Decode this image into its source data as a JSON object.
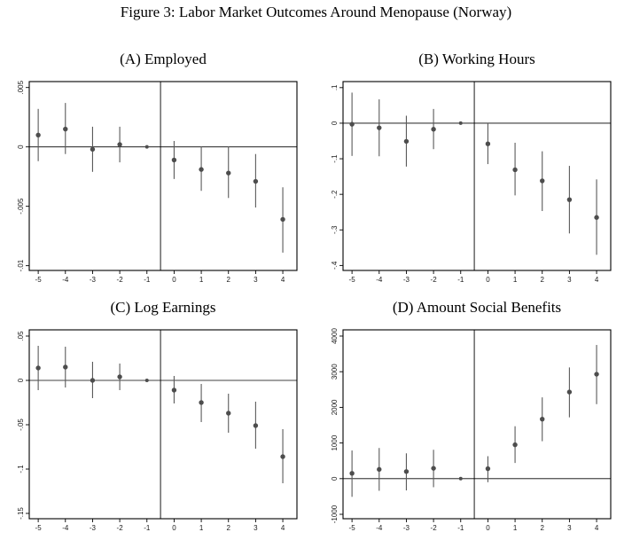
{
  "figure": {
    "title": "Figure 3: Labor Market Outcomes Around Menopause (Norway)"
  },
  "chart_data": [
    {
      "type": "scatter",
      "title": "(A) Employed",
      "x": [
        -5,
        -4,
        -3,
        -2,
        -1,
        0,
        1,
        2,
        3,
        4
      ],
      "xtick_labels": [
        "-5",
        "-4",
        "-3",
        "-2",
        "-1",
        "0",
        "1",
        "2",
        "3",
        "4"
      ],
      "values": [
        0.001,
        0.0015,
        -0.0002,
        0.0002,
        0,
        -0.0011,
        -0.0019,
        -0.0022,
        -0.0029,
        -0.0061
      ],
      "ci_low": [
        -0.0012,
        -0.0006,
        -0.0021,
        -0.0013,
        0,
        -0.0027,
        -0.0037,
        -0.0043,
        -0.0051,
        -0.0089
      ],
      "ci_high": [
        0.0032,
        0.0037,
        0.0017,
        0.0017,
        0,
        0.0005,
        0.0,
        0.0,
        -0.0006,
        -0.0034
      ],
      "reference_x": -1,
      "ytick_values": [
        0.005,
        0,
        -0.005,
        -0.01
      ],
      "ytick_labels": [
        ".005",
        "0",
        "-.005",
        "-.01"
      ],
      "ylim": [
        -0.0104,
        0.0055
      ],
      "xlim": [
        -5.33,
        4.52
      ],
      "vline_x": -0.5,
      "hline_y": 0,
      "marker_color": "#4d4d4d",
      "ci_color": "#5a5a5a",
      "axis_color": "#000000"
    },
    {
      "type": "scatter",
      "title": "(B) Working Hours",
      "x": [
        -5,
        -4,
        -3,
        -2,
        -1,
        0,
        1,
        2,
        3,
        4
      ],
      "xtick_labels": [
        "-5",
        "-4",
        "-3",
        "-2",
        "-1",
        "0",
        "1",
        "2",
        "3",
        "4"
      ],
      "values": [
        -0.003,
        -0.013,
        -0.051,
        -0.017,
        0,
        -0.058,
        -0.131,
        -0.162,
        -0.215,
        -0.265
      ],
      "ci_low": [
        -0.092,
        -0.093,
        -0.122,
        -0.073,
        0,
        -0.115,
        -0.203,
        -0.247,
        -0.31,
        -0.37
      ],
      "ci_high": [
        0.086,
        0.067,
        0.021,
        0.04,
        0,
        0.0,
        -0.055,
        -0.079,
        -0.12,
        -0.158
      ],
      "reference_x": -1,
      "ytick_values": [
        0.1,
        0,
        -0.1,
        -0.2,
        -0.3,
        -0.4
      ],
      "ytick_labels": [
        ".1",
        "0",
        "-.1",
        "-.2",
        "-.3",
        "-.4"
      ],
      "ylim": [
        -0.414,
        0.117
      ],
      "xlim": [
        -5.33,
        4.52
      ],
      "vline_x": -0.5,
      "hline_y": 0,
      "marker_color": "#4d4d4d",
      "ci_color": "#5a5a5a",
      "axis_color": "#000000"
    },
    {
      "type": "scatter",
      "title": "(C) Log Earnings",
      "x": [
        -5,
        -4,
        -3,
        -2,
        -1,
        0,
        1,
        2,
        3,
        4
      ],
      "xtick_labels": [
        "-5",
        "-4",
        "-3",
        "-2",
        "-1",
        "0",
        "1",
        "2",
        "3",
        "4"
      ],
      "values": [
        0.014,
        0.015,
        0.0,
        0.004,
        0,
        -0.011,
        -0.025,
        -0.037,
        -0.051,
        -0.086
      ],
      "ci_low": [
        -0.011,
        -0.008,
        -0.02,
        -0.011,
        0,
        -0.026,
        -0.047,
        -0.059,
        -0.077,
        -0.116
      ],
      "ci_high": [
        0.039,
        0.038,
        0.021,
        0.019,
        0,
        0.005,
        -0.004,
        -0.015,
        -0.024,
        -0.055
      ],
      "reference_x": -1,
      "ytick_values": [
        0.05,
        0,
        -0.05,
        -0.1,
        -0.15
      ],
      "ytick_labels": [
        ".05",
        "0",
        "-.05",
        "-.1",
        "-.15"
      ],
      "ylim": [
        -0.156,
        0.057
      ],
      "xlim": [
        -5.33,
        4.52
      ],
      "vline_x": -0.5,
      "hline_y": 0,
      "marker_color": "#4d4d4d",
      "ci_color": "#5a5a5a",
      "axis_color": "#000000"
    },
    {
      "type": "scatter",
      "title": "(D) Amount Social Benefits",
      "x": [
        -5,
        -4,
        -3,
        -2,
        -1,
        0,
        1,
        2,
        3,
        4
      ],
      "xtick_labels": [
        "-5",
        "-4",
        "-3",
        "-2",
        "-1",
        "0",
        "1",
        "2",
        "3",
        "4"
      ],
      "values": [
        150,
        260,
        200,
        290,
        0,
        280,
        950,
        1670,
        2430,
        2930
      ],
      "ci_low": [
        -510,
        -340,
        -330,
        -240,
        0,
        -100,
        440,
        1050,
        1720,
        2090
      ],
      "ci_high": [
        790,
        860,
        710,
        810,
        0,
        630,
        1470,
        2280,
        3120,
        3750
      ],
      "reference_x": -1,
      "ytick_values": [
        4000,
        3000,
        2000,
        1000,
        0,
        -1000
      ],
      "ytick_labels": [
        "4000",
        "3000",
        "2000",
        "1000",
        "0",
        "-1000"
      ],
      "ylim": [
        -1124,
        4174
      ],
      "xlim": [
        -5.33,
        4.52
      ],
      "vline_x": -0.5,
      "hline_y": 0,
      "marker_color": "#4d4d4d",
      "ci_color": "#5a5a5a",
      "axis_color": "#000000"
    }
  ]
}
